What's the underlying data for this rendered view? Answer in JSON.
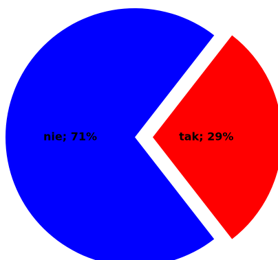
{
  "chart_data": {
    "type": "pie",
    "slices": [
      {
        "label": "nie; 71%",
        "name": "nie",
        "value": 71,
        "color": "#0000ff",
        "exploded": false
      },
      {
        "label": "tak; 29%",
        "name": "tak",
        "value": 29,
        "color": "#ff0000",
        "exploded": true
      }
    ],
    "start_direction": "right",
    "legend": "none",
    "labels_inside": true
  }
}
